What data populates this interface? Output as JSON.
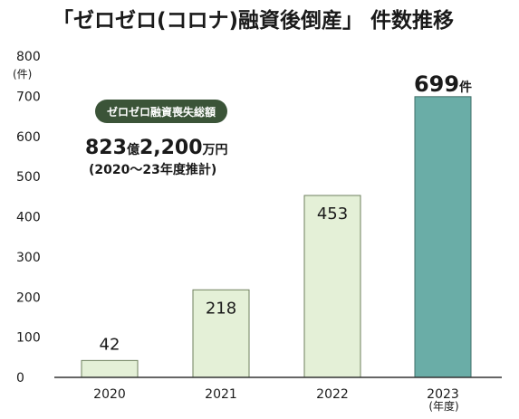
{
  "chart_data": {
    "type": "bar",
    "title": "「ゼロゼロ(コロナ)融資後倒産」 件数推移",
    "y_unit": "(件)",
    "x_unit": "(年度)",
    "categories": [
      "2020",
      "2021",
      "2022",
      "2023"
    ],
    "values": [
      42,
      218,
      453,
      699
    ],
    "value_labels": [
      "42",
      "218",
      "453",
      "699"
    ],
    "highlight_value_suffix": "件",
    "ylim": [
      0,
      800
    ],
    "yticks": [
      0,
      100,
      200,
      300,
      400,
      500,
      600,
      700,
      800
    ],
    "grid": false,
    "colors": {
      "bar": "#e4f0d7",
      "bar_border": "#6e7f5e",
      "highlight_bar": "#6aada7",
      "highlight_border": "#3f6f69",
      "badge": "#3b5438",
      "axis": "#333333"
    },
    "annotation": {
      "badge": "ゼロゼロ融資喪失総額",
      "amount_parts": [
        {
          "text": "823",
          "size": "big"
        },
        {
          "text": "億",
          "size": "small"
        },
        {
          "text": "2,200",
          "size": "big"
        },
        {
          "text": "万円",
          "size": "small"
        }
      ],
      "note": "(2020〜23年度推計)"
    }
  }
}
